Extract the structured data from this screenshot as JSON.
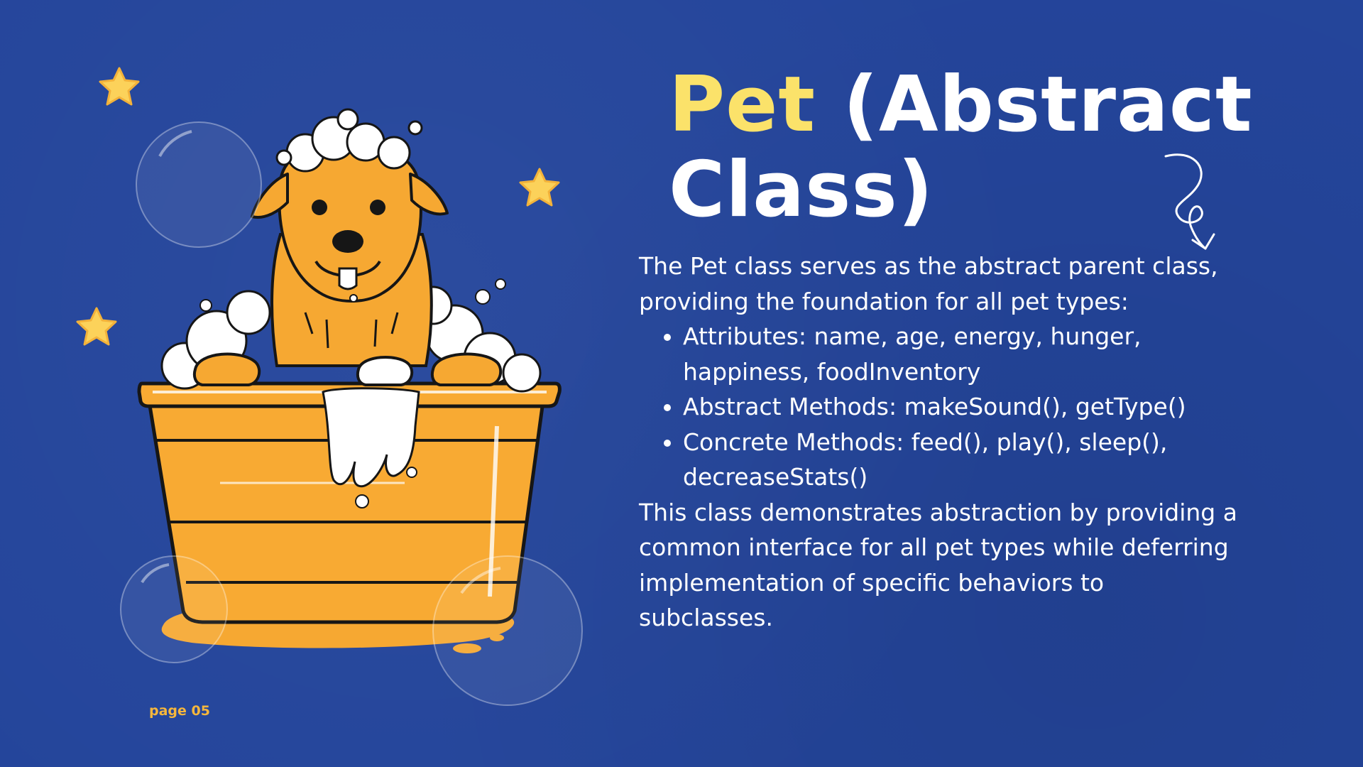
{
  "slide": {
    "title_highlight": "Pet",
    "title_rest": " (Abstract Class)",
    "intro": "The Pet class serves as the abstract parent class, providing the foundation for all pet types:",
    "bullets": [
      "Attributes: name, age, energy, hunger, happiness, foodInventory",
      "Abstract Methods: makeSound(), getType()",
      "Concrete Methods: feed(), play(), sleep(), decreaseStats()"
    ],
    "conclusion": "This class demonstrates abstraction by providing a common interface for all pet types while deferring implementation of specific behaviors to subclasses.",
    "page_label": "page 05"
  },
  "colors": {
    "background": "#24459b",
    "title_highlight": "#fbe26a",
    "text": "#ffffff",
    "accent_orange": "#f6a832",
    "star": "#fcd25a"
  },
  "icons": [
    "star-icon",
    "bubble-icon",
    "dog-illustration",
    "bathtub-illustration",
    "curly-arrow-icon"
  ]
}
